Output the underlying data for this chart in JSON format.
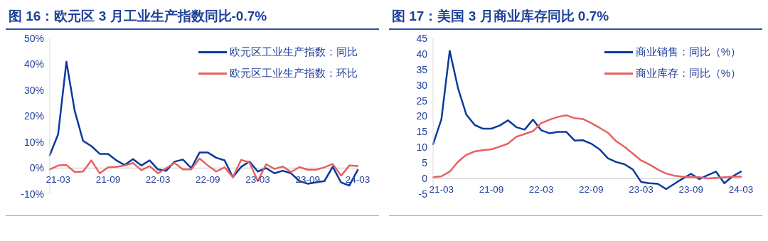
{
  "chart_data": [
    {
      "type": "line",
      "title": "图 16：欧元区 3 月工业生产指数同比-0.7%",
      "categories": [
        null,
        "21-03",
        null,
        null,
        null,
        null,
        null,
        "21-09",
        null,
        null,
        null,
        null,
        null,
        "22-03",
        null,
        null,
        null,
        null,
        null,
        "22-09",
        null,
        null,
        null,
        null,
        null,
        "23-03",
        null,
        null,
        null,
        null,
        null,
        "23-09",
        null,
        null,
        null,
        null,
        null,
        "24-03"
      ],
      "series": [
        {
          "name": "欧元区工业生产指数：同比",
          "color": "#0b3a9c",
          "values": [
            5,
            13,
            41,
            22,
            10.5,
            8.5,
            5.5,
            5.5,
            3,
            1.2,
            3.5,
            1,
            3,
            -0.5,
            -1,
            2.5,
            3.3,
            0,
            6,
            6,
            4,
            3,
            -3.5,
            0.5,
            2.5,
            -1.3,
            0,
            -2,
            -1,
            -2,
            -5,
            -6,
            -5.5,
            -5,
            0.5,
            -5.5,
            -6.7,
            -0.7
          ]
        },
        {
          "name": "欧元区工业生产指数：环比",
          "color": "#e8605f",
          "values": [
            -0.5,
            1,
            1.2,
            -1.5,
            -1.3,
            3,
            -2,
            0.3,
            0.5,
            1,
            2,
            -0.8,
            0.8,
            -2,
            0,
            2,
            -0.5,
            -0.5,
            3.7,
            1,
            -1.3,
            0.3,
            -3.5,
            3.2,
            2.2,
            -5,
            1.5,
            -0.3,
            0.6,
            -1.5,
            0.4,
            -0.6,
            -0.6,
            0.3,
            1.6,
            -2.9,
            1,
            0.8
          ]
        }
      ],
      "ylim": [
        -10,
        50
      ],
      "yticks": [
        {
          "value": -10,
          "label": "-10%"
        },
        {
          "value": 0,
          "label": "0%"
        },
        {
          "value": 10,
          "label": "10%"
        },
        {
          "value": 20,
          "label": "20%"
        },
        {
          "value": 30,
          "label": "30%"
        },
        {
          "value": 40,
          "label": "40%"
        },
        {
          "value": 50,
          "label": "50%"
        }
      ],
      "legend": "top right",
      "grid": false,
      "marker": "none",
      "line_style": "solid"
    },
    {
      "type": "line",
      "title": "图 17：美国 3 月商业库存同比 0.7%",
      "categories": [
        null,
        "21-03",
        null,
        null,
        null,
        null,
        null,
        "21-09",
        null,
        null,
        null,
        null,
        null,
        "22-03",
        null,
        null,
        null,
        null,
        null,
        "22-09",
        null,
        null,
        null,
        null,
        null,
        "23-03",
        null,
        null,
        null,
        null,
        null,
        "23-09",
        null,
        null,
        null,
        null,
        null,
        "24-03"
      ],
      "series": [
        {
          "name": "商业销售：同比（%）",
          "color": "#0b3a9c",
          "values": [
            11,
            19,
            41,
            29,
            20.5,
            17.2,
            16,
            16,
            17,
            18.7,
            16.5,
            15.7,
            18.9,
            15.5,
            14.5,
            15,
            15,
            12.2,
            12.3,
            11.2,
            9.4,
            6.5,
            5.3,
            4.6,
            2.9,
            -1.1,
            -1.5,
            -1.7,
            -3.4,
            -1.7,
            0,
            1.5,
            -0.2,
            1.1,
            2.2,
            -1.5,
            0.7,
            2.2
          ]
        },
        {
          "name": "商业库存：同比（%）",
          "color": "#e8605f",
          "values": [
            0.4,
            0.7,
            2.2,
            5.4,
            7.6,
            8.7,
            9.1,
            9.4,
            10.2,
            11.2,
            13.4,
            14.3,
            15.2,
            17.8,
            18.9,
            19.8,
            20.3,
            19.4,
            19.1,
            17.8,
            16.3,
            14.7,
            12,
            10.2,
            8,
            5.8,
            4.5,
            2.9,
            1.6,
            0.9,
            0.6,
            0.5,
            0.4,
            0,
            0.2,
            0.4,
            0.6,
            0.6
          ]
        }
      ],
      "ylim": [
        -5,
        45
      ],
      "yticks": [
        -5,
        0,
        5,
        10,
        15,
        20,
        25,
        30,
        35,
        40,
        45
      ],
      "legend": "top right",
      "grid": false,
      "marker": "none",
      "line_style": "solid"
    }
  ]
}
